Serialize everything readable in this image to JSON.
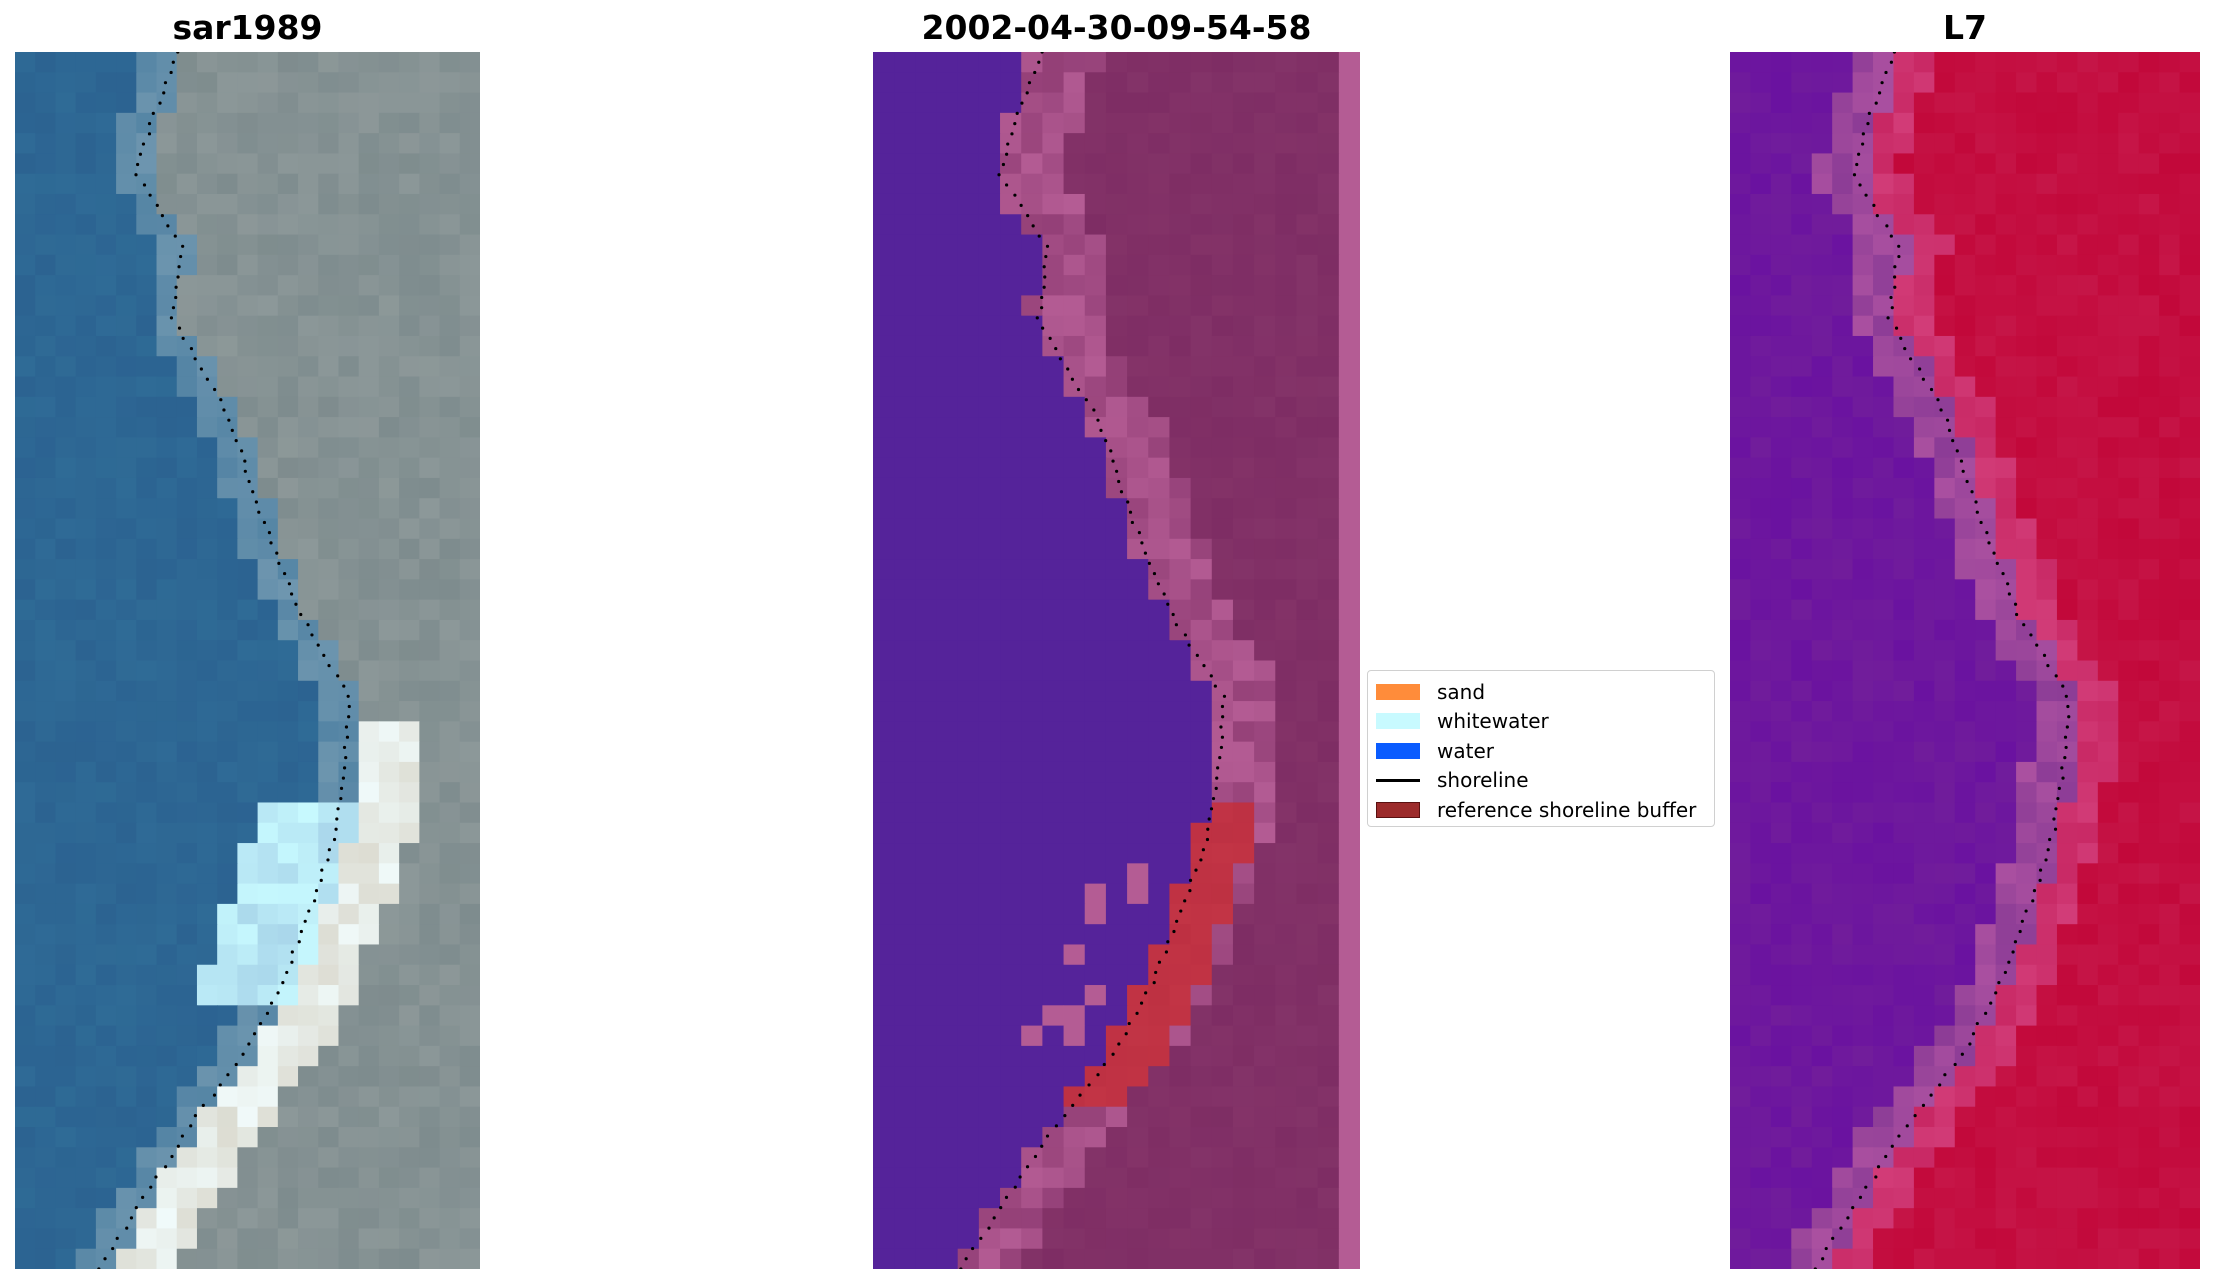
{
  "panels": [
    {
      "title": "sar1989",
      "scheme": "rgb-composite"
    },
    {
      "title": "2002-04-30-09-54-58",
      "scheme": "classified-overlay"
    },
    {
      "title": "L7",
      "scheme": "index"
    }
  ],
  "legend": {
    "items": [
      {
        "label": "sand",
        "color": "#ff8c3a",
        "kind": "patch"
      },
      {
        "label": "whitewater",
        "color": "#c8faff",
        "kind": "patch"
      },
      {
        "label": "water",
        "color": "#0a5cff",
        "kind": "patch"
      },
      {
        "label": "shoreline",
        "color": "#000000",
        "kind": "line"
      },
      {
        "label": "reference shoreline buffer",
        "color": "#9c2b2b",
        "kind": "patch"
      }
    ]
  },
  "colors": {
    "classified_water": "#55239a",
    "classified_land": "#7e2d64",
    "classified_edge": "#b45c94",
    "classified_buffer": "#c23445",
    "index_water": "#6a12a0",
    "index_land": "#c2083a",
    "rgb_water": "#2f6b96",
    "rgb_land": "#7e8c8e",
    "rgb_sand": "#dcdcd2"
  }
}
